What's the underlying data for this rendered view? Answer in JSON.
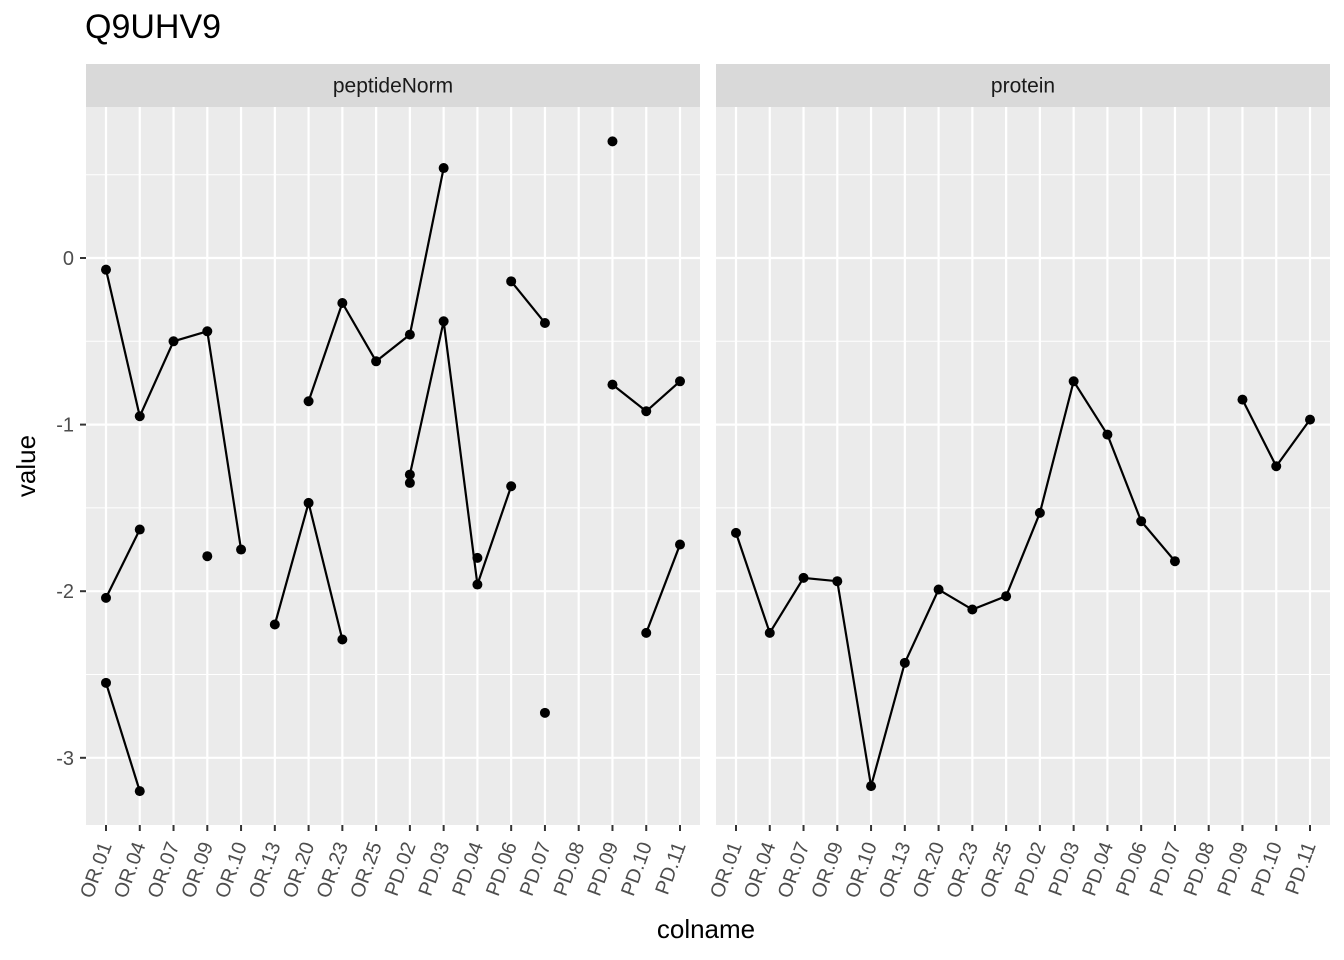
{
  "chart_data": {
    "type": "line",
    "title": "Q9UHV9",
    "xlabel": "colname",
    "ylabel": "value",
    "ylim": [
      -3.4,
      0.88
    ],
    "yticks": [
      0,
      -1,
      -2,
      -3
    ],
    "ytick_labels": [
      "0",
      "-1",
      "-2",
      "-3"
    ],
    "grid": true,
    "categories": [
      "OR.01",
      "OR.04",
      "OR.07",
      "OR.09",
      "OR.10",
      "OR.13",
      "OR.20",
      "OR.23",
      "OR.25",
      "PD.02",
      "PD.03",
      "PD.04",
      "PD.06",
      "PD.07",
      "PD.08",
      "PD.09",
      "PD.10",
      "PD.11"
    ],
    "panels": [
      {
        "name": "peptideNorm",
        "series": [
          {
            "values": [
              -0.07,
              -0.95,
              -0.5,
              -0.44,
              -1.75,
              null,
              null,
              null,
              null,
              null,
              null,
              null,
              null,
              null,
              null,
              null,
              null,
              null
            ]
          },
          {
            "values": [
              -2.04,
              -1.63,
              null,
              -1.79,
              null,
              -2.2,
              -1.47,
              -2.29,
              null,
              null,
              null,
              -1.8,
              null,
              -2.73,
              null,
              null,
              -2.25,
              -1.72
            ]
          },
          {
            "values": [
              -2.55,
              -3.2,
              null,
              null,
              null,
              null,
              null,
              null,
              null,
              null,
              null,
              null,
              null,
              null,
              null,
              null,
              null,
              null
            ]
          },
          {
            "values": [
              null,
              null,
              null,
              null,
              null,
              null,
              -0.86,
              -0.27,
              -0.62,
              -0.46,
              0.54,
              null,
              -0.14,
              -0.39,
              null,
              -0.76,
              -0.92,
              -0.74
            ]
          },
          {
            "values": [
              null,
              null,
              null,
              null,
              null,
              null,
              null,
              null,
              null,
              -1.3,
              -0.38,
              -1.96,
              -1.37,
              null,
              null,
              0.7,
              null,
              null
            ]
          },
          {
            "values": [
              null,
              null,
              null,
              null,
              null,
              null,
              null,
              null,
              null,
              -1.35,
              null,
              null,
              null,
              null,
              null,
              null,
              null,
              null
            ]
          }
        ]
      },
      {
        "name": "protein",
        "series": [
          {
            "values": [
              -1.65,
              -2.25,
              -1.92,
              -1.94,
              -3.17,
              -2.43,
              -1.99,
              -2.11,
              -2.03,
              -1.53,
              -0.74,
              -1.06,
              -1.58,
              -1.82,
              null,
              -0.85,
              -1.25,
              -0.97
            ]
          }
        ]
      }
    ]
  }
}
